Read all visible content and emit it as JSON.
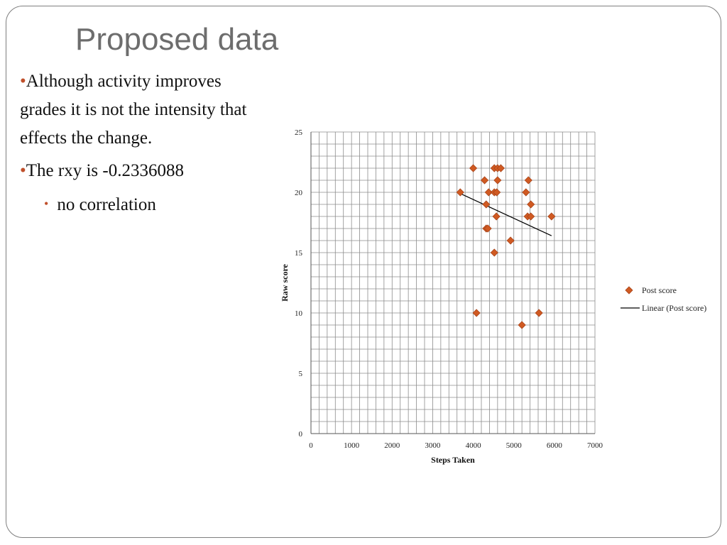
{
  "slide": {
    "title": "Proposed data",
    "bullets": [
      {
        "mark": "•",
        "text": "Although activity improves grades it is not the intensity that effects the change."
      },
      {
        "mark": "•",
        "text": "The rxy is -0.2336088"
      }
    ],
    "subbullets": [
      {
        "mark": "•",
        "text": "no correlation"
      }
    ]
  },
  "chart_data": {
    "type": "scatter",
    "xlabel": "Steps Taken",
    "ylabel": "Raw score",
    "xlim": [
      0,
      7000
    ],
    "ylim": [
      0,
      25
    ],
    "xticks": [
      "0",
      "1000",
      "2000",
      "3000",
      "4000",
      "5000",
      "6000",
      "7000"
    ],
    "yticks": [
      "0",
      "5",
      "10",
      "15",
      "20",
      "25"
    ],
    "grid": true,
    "legend_position": "right",
    "colors": {
      "marker": "#d05a22",
      "marker_edge": "#a8441a",
      "trendline": "#000000",
      "grid": "#8c8c8c"
    },
    "series": [
      {
        "name": "Post score",
        "marker": "diamond",
        "points": [
          [
            3680,
            20
          ],
          [
            4000,
            22
          ],
          [
            4280,
            21
          ],
          [
            4320,
            19
          ],
          [
            4380,
            20
          ],
          [
            4320,
            17
          ],
          [
            4360,
            17
          ],
          [
            4520,
            22
          ],
          [
            4600,
            22
          ],
          [
            4680,
            22
          ],
          [
            4520,
            20
          ],
          [
            4580,
            20
          ],
          [
            4600,
            21
          ],
          [
            4570,
            18
          ],
          [
            4520,
            15
          ],
          [
            4920,
            16
          ],
          [
            5300,
            20
          ],
          [
            5360,
            21
          ],
          [
            5340,
            18
          ],
          [
            5420,
            19
          ],
          [
            5420,
            18
          ],
          [
            5930,
            18
          ],
          [
            4080,
            10
          ],
          [
            5620,
            10
          ],
          [
            5200,
            9
          ]
        ]
      }
    ],
    "trendline": {
      "name": "Linear (Post score)",
      "from": [
        3680,
        19.9
      ],
      "to": [
        5930,
        16.4
      ]
    }
  }
}
